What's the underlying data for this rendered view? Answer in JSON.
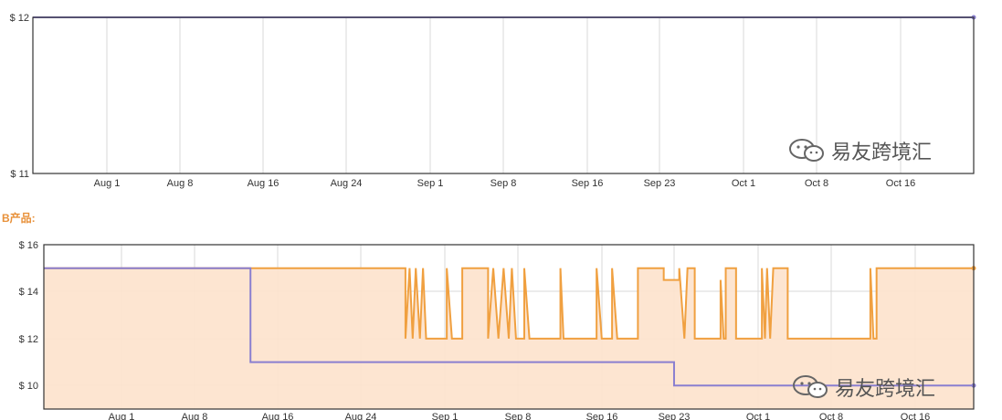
{
  "section_label": "B产品:",
  "watermark": {
    "text": "易友跨境汇",
    "icon": "wechat-icon"
  },
  "colors": {
    "amazon": "#8a7fd0",
    "thirdparty": "#f0a040",
    "fill": "#fde2cc",
    "grid": "#d9d9d9"
  },
  "chart_data": [
    {
      "type": "line",
      "x_tick_labels": [
        "Aug 1",
        "Aug 8",
        "Aug 16",
        "Aug 24",
        "Sep 1",
        "Sep 8",
        "Sep 16",
        "Sep 23",
        "Oct 1",
        "Oct 8",
        "Oct 16"
      ],
      "y_tick_labels": [
        "$ 12",
        "$ 11"
      ],
      "ylim": [
        11,
        12
      ],
      "xlim": [
        "2016-07-26",
        "2016-10-24"
      ],
      "grid": true,
      "series": [
        {
          "points": [
            [
              "2016-07-26",
              12
            ],
            [
              "2016-10-24",
              12
            ]
          ]
        }
      ]
    },
    {
      "type": "area",
      "x_tick_labels": [
        "Aug 1",
        "Aug 8",
        "Aug 16",
        "Aug 24",
        "Sep 1",
        "Sep 8",
        "Sep 16",
        "Sep 23",
        "Oct 1",
        "Oct 8",
        "Oct 16"
      ],
      "y_tick_labels": [
        "$ 16",
        "$ 14",
        "$ 12",
        "$ 10"
      ],
      "ylim": [
        9,
        16
      ],
      "xlim": [
        "2016-07-26",
        "2016-10-24"
      ],
      "grid": true,
      "series": [
        {
          "points": [
            [
              "2016-07-26",
              15
            ],
            [
              "2016-08-30",
              15
            ],
            [
              "2016-08-30",
              12
            ],
            [
              "2016-08-30.4",
              15
            ],
            [
              "2016-08-30.7",
              12
            ],
            [
              "2016-08-31",
              15
            ],
            [
              "2016-08-31.4",
              12
            ],
            [
              "2016-08-31.7",
              15
            ],
            [
              "2016-09-01",
              12
            ],
            [
              "2016-09-03",
              12
            ],
            [
              "2016-09-03",
              15
            ],
            [
              "2016-09-03.5",
              12
            ],
            [
              "2016-09-04.5",
              12
            ],
            [
              "2016-09-04.5",
              15
            ],
            [
              "2016-09-07",
              15
            ],
            [
              "2016-09-07",
              12
            ],
            [
              "2016-09-07.5",
              15
            ],
            [
              "2016-09-08",
              12
            ],
            [
              "2016-09-08.5",
              15
            ],
            [
              "2016-09-09",
              12
            ],
            [
              "2016-09-09.3",
              15
            ],
            [
              "2016-09-09.7",
              12
            ],
            [
              "2016-09-10.5",
              12
            ],
            [
              "2016-09-10.5",
              15
            ],
            [
              "2016-09-11",
              12
            ],
            [
              "2016-09-14",
              12
            ],
            [
              "2016-09-14",
              15
            ],
            [
              "2016-09-14.3",
              12
            ],
            [
              "2016-09-17.5",
              12
            ],
            [
              "2016-09-17.5",
              15
            ],
            [
              "2016-09-18",
              12
            ],
            [
              "2016-09-19",
              12
            ],
            [
              "2016-09-19",
              15
            ],
            [
              "2016-09-19.5",
              12
            ],
            [
              "2016-09-21.5",
              12
            ],
            [
              "2016-09-21.5",
              15
            ],
            [
              "2016-09-24",
              15
            ],
            [
              "2016-09-24",
              14.5
            ],
            [
              "2016-09-25.5",
              14.5
            ],
            [
              "2016-09-25.5",
              15
            ],
            [
              "2016-09-26",
              12
            ],
            [
              "2016-09-26.3",
              15
            ],
            [
              "2016-09-27",
              15
            ],
            [
              "2016-09-27",
              12
            ],
            [
              "2016-09-29.5",
              12
            ],
            [
              "2016-09-29.5",
              14.5
            ],
            [
              "2016-09-29.8",
              12
            ],
            [
              "2016-09-30",
              12
            ],
            [
              "2016-09-30",
              15
            ],
            [
              "2016-10-01",
              15
            ],
            [
              "2016-10-01",
              12
            ],
            [
              "2016-10-03.5",
              12
            ],
            [
              "2016-10-03.5",
              15
            ],
            [
              "2016-10-03.8",
              12
            ],
            [
              "2016-10-04",
              15
            ],
            [
              "2016-10-04.3",
              12
            ],
            [
              "2016-10-04.6",
              15
            ],
            [
              "2016-10-06",
              15
            ],
            [
              "2016-10-06",
              12
            ],
            [
              "2016-10-14",
              12
            ],
            [
              "2016-10-14",
              15
            ],
            [
              "2016-10-14.3",
              12
            ],
            [
              "2016-10-14.6",
              12
            ],
            [
              "2016-10-14.6",
              15
            ],
            [
              "2016-10-24",
              15
            ]
          ]
        },
        {
          "points": [
            [
              "2016-07-26",
              15
            ],
            [
              "2016-08-15",
              15
            ],
            [
              "2016-08-15",
              11
            ],
            [
              "2016-09-25",
              11
            ],
            [
              "2016-09-25",
              10
            ],
            [
              "2016-10-24",
              10
            ]
          ]
        }
      ]
    }
  ]
}
